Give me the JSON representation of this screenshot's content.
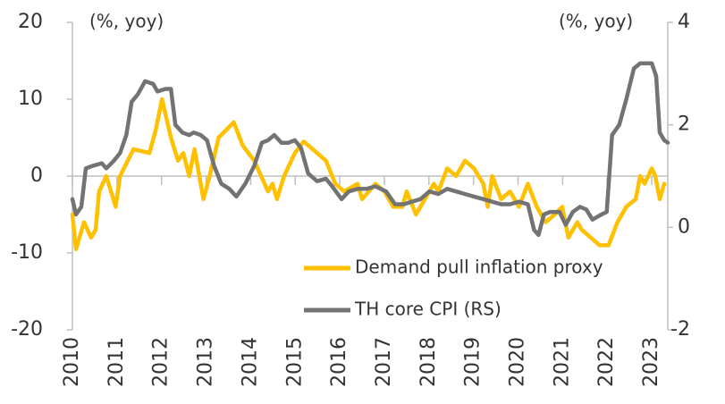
{
  "chart_data": {
    "type": "line",
    "y_axis_label": "(%, yoy)",
    "y2_axis_label": "(%, yoy)",
    "xlim": [
      2010,
      2023.36
    ],
    "xticks": [
      2010,
      2011,
      2012,
      2013,
      2014,
      2015,
      2016,
      2017,
      2018,
      2019,
      2020,
      2021,
      2022,
      2023
    ],
    "ylim": [
      -20,
      20
    ],
    "yticks": [
      -20,
      -10,
      0,
      10,
      20
    ],
    "y2lim": [
      -2,
      4
    ],
    "y2ticks": [
      -2,
      0,
      2,
      4
    ],
    "legend_position": "lower right",
    "series": [
      {
        "name": "Demand pull inflation proxy",
        "color": "#ffc000",
        "axis": "y",
        "x": [
          2010.0,
          2010.08,
          2010.26,
          2010.42,
          2010.52,
          2010.6,
          2010.76,
          2010.97,
          2011.07,
          2011.37,
          2011.73,
          2011.87,
          2012.01,
          2012.21,
          2012.37,
          2012.49,
          2012.62,
          2012.74,
          2012.94,
          2013.08,
          2013.28,
          2013.62,
          2013.82,
          2014.08,
          2014.39,
          2014.49,
          2014.59,
          2014.75,
          2014.99,
          2015.19,
          2015.49,
          2015.69,
          2015.9,
          2016.1,
          2016.4,
          2016.5,
          2016.8,
          2017.0,
          2017.2,
          2017.4,
          2017.5,
          2017.71,
          2017.91,
          2018.11,
          2018.21,
          2018.41,
          2018.61,
          2018.81,
          2019.01,
          2019.22,
          2019.32,
          2019.42,
          2019.62,
          2019.82,
          2020.02,
          2020.22,
          2020.42,
          2020.62,
          2020.82,
          2020.99,
          2021.13,
          2021.33,
          2021.43,
          2021.63,
          2021.83,
          2022.03,
          2022.23,
          2022.43,
          2022.64,
          2022.74,
          2022.84,
          2023.0,
          2023.08,
          2023.18,
          2023.28
        ],
        "values": [
          -5,
          -9.5,
          -6,
          -8,
          -7,
          -2,
          0,
          -4,
          0,
          3.5,
          3,
          6,
          10,
          5,
          2,
          3,
          0,
          3.5,
          -3,
          0,
          5,
          7,
          4,
          2,
          -2,
          -1,
          -3,
          0,
          3,
          4.5,
          3,
          2,
          -1,
          -2,
          -1,
          -3,
          -1,
          -2,
          -4,
          -4,
          -2,
          -5,
          -3,
          -1,
          -2,
          1,
          0,
          2,
          1,
          -1,
          -4,
          0,
          -3,
          -2,
          -4,
          -1,
          -4,
          -6,
          -5,
          -4,
          -8,
          -6,
          -7,
          -8,
          -9,
          -9,
          -6,
          -4,
          -3,
          0,
          -1,
          1,
          0,
          -3,
          -1
        ]
      },
      {
        "name": "TH core CPI (RS)",
        "color": "#737373",
        "axis": "y2",
        "x": [
          2010.0,
          2010.08,
          2010.2,
          2010.3,
          2010.46,
          2010.66,
          2010.76,
          2010.93,
          2011.07,
          2011.21,
          2011.33,
          2011.47,
          2011.63,
          2011.81,
          2011.91,
          2012.09,
          2012.21,
          2012.31,
          2012.47,
          2012.62,
          2012.72,
          2012.88,
          2013.02,
          2013.18,
          2013.34,
          2013.52,
          2013.68,
          2013.88,
          2014.08,
          2014.25,
          2014.39,
          2014.53,
          2014.69,
          2014.85,
          2014.99,
          2015.13,
          2015.29,
          2015.49,
          2015.69,
          2015.83,
          2016.04,
          2016.2,
          2016.4,
          2016.6,
          2016.8,
          2017.04,
          2017.24,
          2017.44,
          2017.61,
          2017.81,
          2018.01,
          2018.21,
          2018.41,
          2018.61,
          2018.81,
          2019.01,
          2019.22,
          2019.42,
          2019.62,
          2019.82,
          2020.02,
          2020.22,
          2020.36,
          2020.46,
          2020.58,
          2020.72,
          2020.93,
          2021.07,
          2021.23,
          2021.39,
          2021.53,
          2021.67,
          2021.87,
          2021.99,
          2022.11,
          2022.27,
          2022.43,
          2022.6,
          2022.74,
          2022.88,
          2023.0,
          2023.1,
          2023.18,
          2023.28,
          2023.36
        ],
        "values": [
          0.55,
          0.25,
          0.4,
          1.15,
          1.2,
          1.25,
          1.15,
          1.3,
          1.45,
          1.8,
          2.45,
          2.6,
          2.85,
          2.8,
          2.65,
          2.7,
          2.7,
          2.0,
          1.85,
          1.8,
          1.85,
          1.8,
          1.7,
          1.2,
          0.85,
          0.75,
          0.6,
          0.85,
          1.2,
          1.65,
          1.7,
          1.8,
          1.65,
          1.65,
          1.7,
          1.55,
          1.05,
          0.9,
          0.95,
          0.8,
          0.55,
          0.7,
          0.75,
          0.75,
          0.8,
          0.7,
          0.45,
          0.45,
          0.5,
          0.55,
          0.7,
          0.65,
          0.75,
          0.7,
          0.65,
          0.6,
          0.55,
          0.5,
          0.45,
          0.45,
          0.5,
          0.45,
          -0.05,
          -0.15,
          0.25,
          0.3,
          0.3,
          0.05,
          0.3,
          0.4,
          0.35,
          0.15,
          0.25,
          0.3,
          1.8,
          2.0,
          2.5,
          3.1,
          3.2,
          3.2,
          3.2,
          2.95,
          1.85,
          1.7,
          1.65
        ]
      }
    ]
  }
}
